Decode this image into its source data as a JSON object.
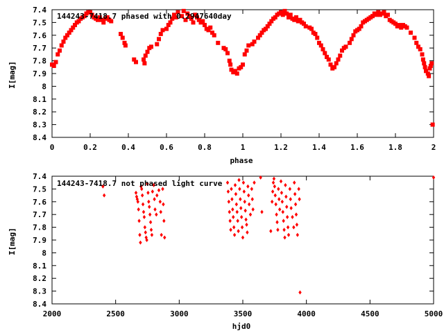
{
  "chart_data": [
    {
      "type": "scatter",
      "title": "144243-7418.7 phased with 0.2947640day",
      "xlabel": "phase",
      "ylabel": "I[mag]",
      "xlim": [
        0,
        2
      ],
      "ylim": [
        7.4,
        8.4
      ],
      "y_inverted": true,
      "grid": false,
      "marker_color": "#ff0000",
      "marker": "filled-circle",
      "xticks": [
        "0",
        "0.2",
        "0.4",
        "0.6",
        "0.8",
        "1",
        "1.2",
        "1.4",
        "1.6",
        "1.8",
        "2"
      ],
      "yticks": [
        "7.4",
        "7.5",
        "7.6",
        "7.7",
        "7.8",
        "7.9",
        "8",
        "8.1",
        "8.2",
        "8.3",
        "8.4"
      ],
      "points": [
        [
          0.0,
          7.83
        ],
        [
          0.01,
          7.84
        ],
        [
          0.02,
          7.81
        ],
        [
          0.03,
          7.75
        ],
        [
          0.04,
          7.72
        ],
        [
          0.05,
          7.68
        ],
        [
          0.06,
          7.65
        ],
        [
          0.07,
          7.62
        ],
        [
          0.08,
          7.6
        ],
        [
          0.09,
          7.58
        ],
        [
          0.1,
          7.56
        ],
        [
          0.11,
          7.54
        ],
        [
          0.12,
          7.52
        ],
        [
          0.13,
          7.5
        ],
        [
          0.14,
          7.49
        ],
        [
          0.15,
          7.47
        ],
        [
          0.16,
          7.46
        ],
        [
          0.17,
          7.45
        ],
        [
          0.18,
          7.43
        ],
        [
          0.19,
          7.42
        ],
        [
          0.2,
          7.42
        ],
        [
          0.21,
          7.44
        ],
        [
          0.22,
          7.46
        ],
        [
          0.23,
          7.47
        ],
        [
          0.24,
          7.48
        ],
        [
          0.25,
          7.46
        ],
        [
          0.26,
          7.48
        ],
        [
          0.27,
          7.5
        ],
        [
          0.28,
          7.47
        ],
        [
          0.29,
          7.46
        ],
        [
          0.3,
          7.48
        ],
        [
          0.31,
          7.49
        ],
        [
          0.36,
          7.59
        ],
        [
          0.37,
          7.62
        ],
        [
          0.38,
          7.66
        ],
        [
          0.385,
          7.68
        ],
        [
          0.43,
          7.79
        ],
        [
          0.44,
          7.81
        ],
        [
          0.48,
          7.79
        ],
        [
          0.485,
          7.82
        ],
        [
          0.49,
          7.76
        ],
        [
          0.5,
          7.73
        ],
        [
          0.51,
          7.7
        ],
        [
          0.52,
          7.69
        ],
        [
          0.55,
          7.67
        ],
        [
          0.56,
          7.63
        ],
        [
          0.57,
          7.59
        ],
        [
          0.58,
          7.56
        ],
        [
          0.6,
          7.55
        ],
        [
          0.61,
          7.52
        ],
        [
          0.62,
          7.5
        ],
        [
          0.63,
          7.47
        ],
        [
          0.64,
          7.44
        ],
        [
          0.65,
          7.46
        ],
        [
          0.66,
          7.42
        ],
        [
          0.68,
          7.45
        ],
        [
          0.69,
          7.41
        ],
        [
          0.7,
          7.48
        ],
        [
          0.71,
          7.43
        ],
        [
          0.72,
          7.45
        ],
        [
          0.73,
          7.47
        ],
        [
          0.74,
          7.5
        ],
        [
          0.75,
          7.44
        ],
        [
          0.76,
          7.46
        ],
        [
          0.77,
          7.48
        ],
        [
          0.78,
          7.5
        ],
        [
          0.79,
          7.49
        ],
        [
          0.8,
          7.52
        ],
        [
          0.81,
          7.55
        ],
        [
          0.82,
          7.56
        ],
        [
          0.83,
          7.54
        ],
        [
          0.84,
          7.58
        ],
        [
          0.85,
          7.6
        ],
        [
          0.87,
          7.66
        ],
        [
          0.9,
          7.7
        ],
        [
          0.91,
          7.71
        ],
        [
          0.92,
          7.74
        ],
        [
          0.93,
          7.8
        ],
        [
          0.935,
          7.83
        ],
        [
          0.94,
          7.87
        ],
        [
          0.95,
          7.89
        ],
        [
          0.96,
          7.88
        ],
        [
          0.97,
          7.9
        ],
        [
          0.98,
          7.86
        ],
        [
          0.99,
          7.85
        ],
        [
          1.0,
          7.83
        ],
        [
          1.01,
          7.75
        ],
        [
          1.02,
          7.72
        ],
        [
          1.03,
          7.68
        ],
        [
          1.05,
          7.67
        ],
        [
          1.06,
          7.65
        ],
        [
          1.08,
          7.62
        ],
        [
          1.09,
          7.6
        ],
        [
          1.1,
          7.58
        ],
        [
          1.11,
          7.56
        ],
        [
          1.12,
          7.55
        ],
        [
          1.13,
          7.53
        ],
        [
          1.14,
          7.51
        ],
        [
          1.15,
          7.49
        ],
        [
          1.16,
          7.47
        ],
        [
          1.17,
          7.46
        ],
        [
          1.18,
          7.44
        ],
        [
          1.19,
          7.43
        ],
        [
          1.2,
          7.42
        ],
        [
          1.21,
          7.44
        ],
        [
          1.22,
          7.41
        ],
        [
          1.23,
          7.43
        ],
        [
          1.24,
          7.46
        ],
        [
          1.25,
          7.44
        ],
        [
          1.26,
          7.47
        ],
        [
          1.27,
          7.48
        ],
        [
          1.28,
          7.46
        ],
        [
          1.29,
          7.49
        ],
        [
          1.3,
          7.48
        ],
        [
          1.31,
          7.5
        ],
        [
          1.32,
          7.51
        ],
        [
          1.33,
          7.53
        ],
        [
          1.35,
          7.54
        ],
        [
          1.36,
          7.55
        ],
        [
          1.37,
          7.58
        ],
        [
          1.38,
          7.59
        ],
        [
          1.39,
          7.62
        ],
        [
          1.4,
          7.66
        ],
        [
          1.41,
          7.68
        ],
        [
          1.42,
          7.71
        ],
        [
          1.43,
          7.74
        ],
        [
          1.44,
          7.77
        ],
        [
          1.45,
          7.79
        ],
        [
          1.46,
          7.83
        ],
        [
          1.47,
          7.86
        ],
        [
          1.48,
          7.85
        ],
        [
          1.49,
          7.82
        ],
        [
          1.5,
          7.79
        ],
        [
          1.51,
          7.76
        ],
        [
          1.52,
          7.72
        ],
        [
          1.53,
          7.7
        ],
        [
          1.54,
          7.69
        ],
        [
          1.56,
          7.66
        ],
        [
          1.57,
          7.63
        ],
        [
          1.58,
          7.6
        ],
        [
          1.59,
          7.57
        ],
        [
          1.6,
          7.56
        ],
        [
          1.61,
          7.55
        ],
        [
          1.62,
          7.53
        ],
        [
          1.63,
          7.5
        ],
        [
          1.64,
          7.49
        ],
        [
          1.65,
          7.48
        ],
        [
          1.66,
          7.47
        ],
        [
          1.67,
          7.46
        ],
        [
          1.68,
          7.45
        ],
        [
          1.69,
          7.43
        ],
        [
          1.7,
          7.44
        ],
        [
          1.71,
          7.42
        ],
        [
          1.72,
          7.44
        ],
        [
          1.73,
          7.43
        ],
        [
          1.74,
          7.42
        ],
        [
          1.75,
          7.45
        ],
        [
          1.76,
          7.44
        ],
        [
          1.77,
          7.48
        ],
        [
          1.78,
          7.49
        ],
        [
          1.79,
          7.5
        ],
        [
          1.8,
          7.51
        ],
        [
          1.81,
          7.53
        ],
        [
          1.82,
          7.52
        ],
        [
          1.83,
          7.54
        ],
        [
          1.84,
          7.52
        ],
        [
          1.85,
          7.53
        ],
        [
          1.86,
          7.54
        ],
        [
          1.88,
          7.58
        ],
        [
          1.9,
          7.62
        ],
        [
          1.91,
          7.66
        ],
        [
          1.92,
          7.69
        ],
        [
          1.93,
          7.71
        ],
        [
          1.94,
          7.75
        ],
        [
          1.945,
          7.79
        ],
        [
          1.95,
          7.82
        ],
        [
          1.955,
          7.85
        ],
        [
          1.96,
          7.88
        ],
        [
          1.97,
          7.9
        ],
        [
          1.975,
          7.92
        ],
        [
          1.98,
          7.86
        ],
        [
          1.985,
          7.84
        ],
        [
          1.99,
          7.82
        ],
        [
          1.995,
          8.3
        ]
      ]
    },
    {
      "type": "scatter",
      "title": "144243-7418.7 not phased light curve",
      "xlabel": "hjd0",
      "ylabel": "I[mag]",
      "xlim": [
        2000,
        5000
      ],
      "ylim": [
        7.4,
        8.4
      ],
      "y_inverted": true,
      "grid": false,
      "marker_color": "#ff0000",
      "marker": "filled-diamond",
      "xticks": [
        "2000",
        "2500",
        "3000",
        "3500",
        "4000",
        "4500",
        "5000"
      ],
      "yticks": [
        "7.4",
        "7.5",
        "7.6",
        "7.7",
        "7.8",
        "7.9",
        "8",
        "8.1",
        "8.2",
        "8.3",
        "8.4"
      ],
      "points": [
        [
          2400,
          7.48
        ],
        [
          2410,
          7.55
        ],
        [
          2660,
          7.53
        ],
        [
          2665,
          7.56
        ],
        [
          2670,
          7.58
        ],
        [
          2675,
          7.6
        ],
        [
          2680,
          7.66
        ],
        [
          2685,
          7.75
        ],
        [
          2690,
          7.86
        ],
        [
          2695,
          7.92
        ],
        [
          2700,
          7.48
        ],
        [
          2705,
          7.5
        ],
        [
          2710,
          7.55
        ],
        [
          2715,
          7.62
        ],
        [
          2720,
          7.68
        ],
        [
          2725,
          7.72
        ],
        [
          2730,
          7.8
        ],
        [
          2735,
          7.84
        ],
        [
          2740,
          7.88
        ],
        [
          2745,
          7.9
        ],
        [
          2750,
          7.46
        ],
        [
          2755,
          7.53
        ],
        [
          2760,
          7.6
        ],
        [
          2765,
          7.64
        ],
        [
          2770,
          7.7
        ],
        [
          2775,
          7.76
        ],
        [
          2780,
          7.82
        ],
        [
          2785,
          7.86
        ],
        [
          2790,
          7.52
        ],
        [
          2800,
          7.47
        ],
        [
          2805,
          7.58
        ],
        [
          2810,
          7.66
        ],
        [
          2820,
          7.7
        ],
        [
          2825,
          7.55
        ],
        [
          2840,
          7.51
        ],
        [
          2850,
          7.6
        ],
        [
          2855,
          7.68
        ],
        [
          2860,
          7.86
        ],
        [
          2870,
          7.5
        ],
        [
          2875,
          7.62
        ],
        [
          2880,
          7.75
        ],
        [
          2885,
          7.88
        ],
        [
          3380,
          7.45
        ],
        [
          3385,
          7.52
        ],
        [
          3390,
          7.6
        ],
        [
          3395,
          7.68
        ],
        [
          3400,
          7.75
        ],
        [
          3405,
          7.82
        ],
        [
          3410,
          7.5
        ],
        [
          3415,
          7.58
        ],
        [
          3420,
          7.66
        ],
        [
          3425,
          7.72
        ],
        [
          3430,
          7.8
        ],
        [
          3435,
          7.86
        ],
        [
          3440,
          7.47
        ],
        [
          3445,
          7.54
        ],
        [
          3450,
          7.62
        ],
        [
          3455,
          7.68
        ],
        [
          3460,
          7.75
        ],
        [
          3465,
          7.83
        ],
        [
          3470,
          7.43
        ],
        [
          3475,
          7.5
        ],
        [
          3480,
          7.58
        ],
        [
          3485,
          7.65
        ],
        [
          3490,
          7.72
        ],
        [
          3495,
          7.8
        ],
        [
          3500,
          7.88
        ],
        [
          3505,
          7.45
        ],
        [
          3510,
          7.52
        ],
        [
          3515,
          7.6
        ],
        [
          3520,
          7.67
        ],
        [
          3525,
          7.74
        ],
        [
          3530,
          7.78
        ],
        [
          3535,
          7.84
        ],
        [
          3540,
          7.48
        ],
        [
          3545,
          7.55
        ],
        [
          3550,
          7.62
        ],
        [
          3560,
          7.7
        ],
        [
          3570,
          7.5
        ],
        [
          3575,
          7.58
        ],
        [
          3580,
          7.66
        ],
        [
          3590,
          7.45
        ],
        [
          3640,
          7.41
        ],
        [
          3650,
          7.68
        ],
        [
          3720,
          7.83
        ],
        [
          3730,
          7.6
        ],
        [
          3735,
          7.52
        ],
        [
          3740,
          7.45
        ],
        [
          3745,
          7.42
        ],
        [
          3750,
          7.48
        ],
        [
          3755,
          7.55
        ],
        [
          3760,
          7.62
        ],
        [
          3765,
          7.7
        ],
        [
          3770,
          7.76
        ],
        [
          3775,
          7.82
        ],
        [
          3780,
          7.5
        ],
        [
          3785,
          7.58
        ],
        [
          3790,
          7.66
        ],
        [
          3800,
          7.44
        ],
        [
          3805,
          7.53
        ],
        [
          3810,
          7.6
        ],
        [
          3815,
          7.68
        ],
        [
          3820,
          7.75
        ],
        [
          3825,
          7.82
        ],
        [
          3830,
          7.88
        ],
        [
          3835,
          7.47
        ],
        [
          3840,
          7.56
        ],
        [
          3845,
          7.64
        ],
        [
          3850,
          7.72
        ],
        [
          3855,
          7.8
        ],
        [
          3860,
          7.86
        ],
        [
          3870,
          7.5
        ],
        [
          3875,
          7.58
        ],
        [
          3880,
          7.65
        ],
        [
          3890,
          7.72
        ],
        [
          3900,
          7.8
        ],
        [
          3905,
          7.45
        ],
        [
          3910,
          7.54
        ],
        [
          3915,
          7.62
        ],
        [
          3920,
          7.7
        ],
        [
          3925,
          7.78
        ],
        [
          3930,
          7.86
        ],
        [
          3940,
          7.5
        ],
        [
          3945,
          7.58
        ],
        [
          3950,
          8.31
        ],
        [
          5000,
          7.41
        ]
      ]
    }
  ]
}
